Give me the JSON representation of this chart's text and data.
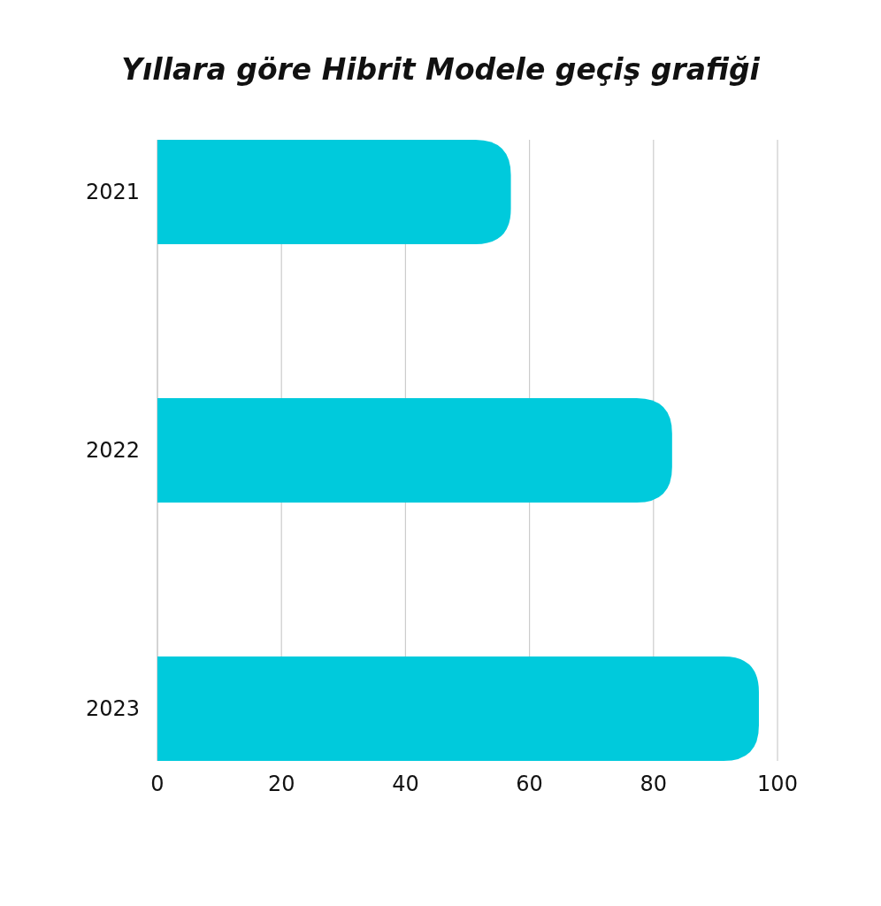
{
  "chart_data": {
    "type": "bar",
    "orientation": "horizontal",
    "title": "Yıllara göre Hibrit Modele geçiş grafiği",
    "categories": [
      "2021",
      "2022",
      "2023"
    ],
    "values": [
      57,
      83,
      97
    ],
    "color": "#00cadc",
    "xlim": [
      0,
      100
    ],
    "xticks": [
      0,
      20,
      40,
      60,
      80,
      100
    ],
    "grid": "x"
  }
}
